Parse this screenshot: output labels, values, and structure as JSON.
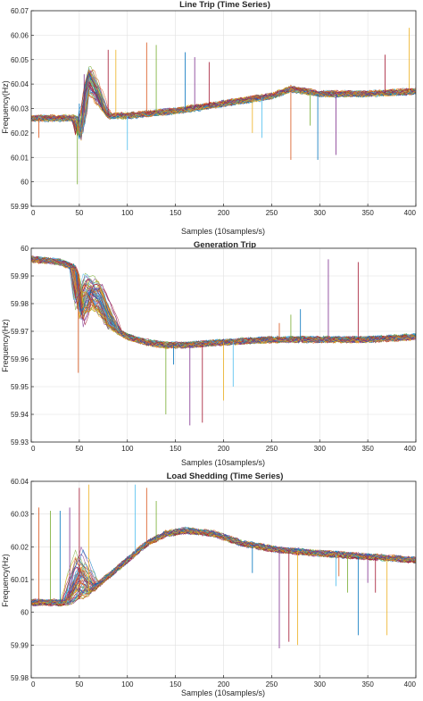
{
  "figure": {
    "panels": [
      {
        "title": "Line Trip (Time Series)",
        "xlabel": "Samples (10samples/s)",
        "ylabel": "Frequency(Hz)"
      },
      {
        "title": "Generation Trip",
        "xlabel": "Samples (10samples/s)",
        "ylabel": "Frequency(Hz)"
      },
      {
        "title": "Load Shedding (Time Series)",
        "xlabel": "Samples (10samples/s)",
        "ylabel": "Frequency(Hz)"
      }
    ]
  },
  "chart_data": [
    {
      "type": "line",
      "title": "Line Trip (Time Series)",
      "xlabel": "Samples (10samples/s)",
      "ylabel": "Frequency(Hz)",
      "xlim": [
        0,
        400
      ],
      "ylim": [
        59.99,
        60.07
      ],
      "xticks": [
        0,
        50,
        100,
        150,
        200,
        250,
        300,
        350,
        400
      ],
      "yticks": [
        59.99,
        60,
        60.01,
        60.02,
        60.03,
        60.04,
        60.05,
        60.06,
        60.07
      ],
      "ytick_labels": [
        "59.99",
        "60",
        "60.01",
        "60.02",
        "60.03",
        "60.04",
        "60.05",
        "60.06",
        "60.07"
      ],
      "grid": true,
      "series_count": 60,
      "envelope": {
        "x": [
          0,
          40,
          48,
          52,
          56,
          60,
          70,
          80,
          100,
          150,
          200,
          250,
          270,
          300,
          350,
          400
        ],
        "y": [
          60.026,
          60.026,
          60.026,
          60.023,
          60.03,
          60.036,
          60.032,
          60.027,
          60.027,
          60.029,
          60.032,
          60.035,
          60.038,
          60.036,
          60.036,
          60.037
        ]
      },
      "event_perturbation": {
        "x": [
          48,
          52,
          56,
          60,
          66,
          72,
          80
        ],
        "y": [
          0,
          -0.006,
          0.003,
          0.006,
          0.004,
          0.002,
          0
        ],
        "spread": 0.004
      },
      "spikes": [
        {
          "x": 8,
          "y": 60.018
        },
        {
          "x": 48,
          "y": 59.999
        },
        {
          "x": 50,
          "y": 60.032
        },
        {
          "x": 55,
          "y": 60.044
        },
        {
          "x": 80,
          "y": 60.054
        },
        {
          "x": 88,
          "y": 60.054
        },
        {
          "x": 100,
          "y": 60.013
        },
        {
          "x": 120,
          "y": 60.057
        },
        {
          "x": 130,
          "y": 60.056
        },
        {
          "x": 160,
          "y": 60.053
        },
        {
          "x": 170,
          "y": 60.051
        },
        {
          "x": 185,
          "y": 60.049
        },
        {
          "x": 230,
          "y": 60.02
        },
        {
          "x": 240,
          "y": 60.018
        },
        {
          "x": 270,
          "y": 60.009
        },
        {
          "x": 290,
          "y": 60.023
        },
        {
          "x": 298,
          "y": 60.009
        },
        {
          "x": 317,
          "y": 60.011
        },
        {
          "x": 368,
          "y": 60.052
        },
        {
          "x": 393,
          "y": 60.063
        }
      ],
      "colors": [
        "#0072BD",
        "#D95319",
        "#EDB120",
        "#7E2F8E",
        "#77AC30",
        "#4DBEEE",
        "#A2142F"
      ]
    },
    {
      "type": "line",
      "title": "Generation Trip",
      "xlabel": "Samples (10samples/s)",
      "ylabel": "Frequency(Hz)",
      "xlim": [
        0,
        400
      ],
      "ylim": [
        59.93,
        60
      ],
      "xticks": [
        0,
        50,
        100,
        150,
        200,
        250,
        300,
        350,
        400
      ],
      "yticks": [
        59.93,
        59.94,
        59.95,
        59.96,
        59.97,
        59.98,
        59.99,
        60
      ],
      "ytick_labels": [
        "59.93",
        "59.94",
        "59.95",
        "59.96",
        "59.97",
        "59.98",
        "59.99",
        "60"
      ],
      "grid": true,
      "series_count": 60,
      "envelope": {
        "x": [
          0,
          30,
          45,
          55,
          65,
          80,
          100,
          120,
          140,
          160,
          200,
          250,
          300,
          350,
          400
        ],
        "y": [
          59.996,
          59.995,
          59.993,
          59.987,
          59.979,
          59.972,
          59.968,
          59.966,
          59.965,
          59.965,
          59.966,
          59.967,
          59.967,
          59.967,
          59.968
        ]
      },
      "event_perturbation": {
        "x": [
          45,
          50,
          55,
          60,
          70,
          80,
          90
        ],
        "y": [
          0,
          -0.012,
          -0.006,
          0.002,
          0.006,
          0.003,
          0
        ],
        "spread": 0.006
      },
      "spikes": [
        {
          "x": 49,
          "y": 59.955
        },
        {
          "x": 140,
          "y": 59.94
        },
        {
          "x": 148,
          "y": 59.958
        },
        {
          "x": 165,
          "y": 59.936
        },
        {
          "x": 178,
          "y": 59.937
        },
        {
          "x": 200,
          "y": 59.945
        },
        {
          "x": 210,
          "y": 59.95
        },
        {
          "x": 258,
          "y": 59.973
        },
        {
          "x": 270,
          "y": 59.976
        },
        {
          "x": 280,
          "y": 59.978
        },
        {
          "x": 309,
          "y": 59.996
        },
        {
          "x": 340,
          "y": 59.995
        }
      ],
      "colors": [
        "#0072BD",
        "#D95319",
        "#EDB120",
        "#7E2F8E",
        "#77AC30",
        "#4DBEEE",
        "#A2142F"
      ]
    },
    {
      "type": "line",
      "title": "Load Shedding (Time Series)",
      "xlabel": "Samples (10samples/s)",
      "ylabel": "Frequency(Hz)",
      "xlim": [
        0,
        400
      ],
      "ylim": [
        59.98,
        60.04
      ],
      "xticks": [
        0,
        50,
        100,
        150,
        200,
        250,
        300,
        350,
        400
      ],
      "yticks": [
        59.98,
        59.99,
        60,
        60.01,
        60.02,
        60.03,
        60.04
      ],
      "ytick_labels": [
        "59.98",
        "59.99",
        "60",
        "60.01",
        "60.02",
        "60.03",
        "60.04"
      ],
      "grid": true,
      "series_count": 60,
      "envelope": {
        "x": [
          0,
          40,
          50,
          60,
          80,
          100,
          120,
          140,
          160,
          190,
          220,
          260,
          300,
          350,
          400
        ],
        "y": [
          60.003,
          60.003,
          60.004,
          60.006,
          60.011,
          60.016,
          60.021,
          60.024,
          60.025,
          60.024,
          60.021,
          60.019,
          60.018,
          60.017,
          60.016
        ]
      },
      "event_perturbation": {
        "x": [
          35,
          42,
          50,
          58,
          66
        ],
        "y": [
          0,
          0.004,
          0.008,
          0.004,
          0
        ],
        "spread": 0.005
      },
      "spikes": [
        {
          "x": 8,
          "y": 60.032
        },
        {
          "x": 20,
          "y": 60.031
        },
        {
          "x": 30,
          "y": 60.031
        },
        {
          "x": 40,
          "y": 60.032
        },
        {
          "x": 50,
          "y": 60.038
        },
        {
          "x": 60,
          "y": 60.039
        },
        {
          "x": 108,
          "y": 60.039
        },
        {
          "x": 120,
          "y": 60.038
        },
        {
          "x": 130,
          "y": 60.034
        },
        {
          "x": 230,
          "y": 60.012
        },
        {
          "x": 258,
          "y": 59.989
        },
        {
          "x": 268,
          "y": 59.991
        },
        {
          "x": 277,
          "y": 59.99
        },
        {
          "x": 317,
          "y": 60.008
        },
        {
          "x": 320,
          "y": 60.011
        },
        {
          "x": 329,
          "y": 60.006
        },
        {
          "x": 340,
          "y": 59.993
        },
        {
          "x": 350,
          "y": 60.009
        },
        {
          "x": 358,
          "y": 60.006
        },
        {
          "x": 370,
          "y": 59.993
        }
      ],
      "colors": [
        "#0072BD",
        "#D95319",
        "#EDB120",
        "#7E2F8E",
        "#77AC30",
        "#4DBEEE",
        "#A2142F"
      ]
    }
  ]
}
